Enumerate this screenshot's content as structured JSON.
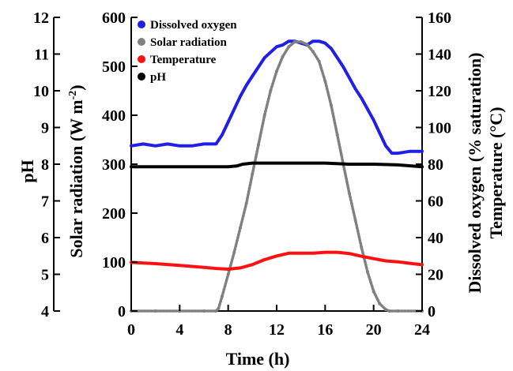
{
  "chart_data": {
    "type": "line",
    "colors": {
      "dissolved_oxygen": "#1f1fe6",
      "solar_radiation": "#808080",
      "temperature": "#ff1010",
      "ph": "#000000"
    },
    "xlabel": "Time (h)",
    "xlim": [
      0,
      24
    ],
    "x_ticks": [
      "0",
      "4",
      "8",
      "12",
      "16",
      "20",
      "24"
    ],
    "axes": {
      "ph": {
        "label": "pH",
        "lim": [
          4,
          12
        ],
        "ticks": [
          "4",
          "5",
          "6",
          "7",
          "8",
          "9",
          "10",
          "11",
          "12"
        ]
      },
      "solar": {
        "label_main": "Solar radiation (W m",
        "label_sup": "-2",
        "label_end": ")",
        "lim": [
          0,
          600
        ],
        "ticks": [
          "0",
          "100",
          "200",
          "300",
          "400",
          "500",
          "600"
        ]
      },
      "right": {
        "label_1": "Dissolved oxygen (% saturation)",
        "label_2": "Temperature (°C)",
        "lim": [
          0,
          160
        ],
        "ticks": [
          "0",
          "20",
          "40",
          "60",
          "80",
          "100",
          "120",
          "140",
          "160"
        ]
      }
    },
    "legend": {
      "position": "top-left",
      "entries": [
        {
          "label": "Dissolved oxygen",
          "series": "dissolved_oxygen"
        },
        {
          "label": "Solar radiation",
          "series": "solar_radiation"
        },
        {
          "label": "Temperature",
          "series": "temperature"
        },
        {
          "label": "pH",
          "series": "ph"
        }
      ]
    },
    "series": [
      {
        "name": "Dissolved oxygen",
        "key": "dissolved_oxygen",
        "axis": "right",
        "x": [
          0,
          1,
          2,
          3,
          4,
          5,
          6,
          7,
          7.5,
          8,
          8.5,
          9,
          9.5,
          10,
          10.5,
          11,
          11.5,
          12,
          12.5,
          13,
          13.5,
          14,
          14.5,
          15,
          15.5,
          16,
          16.5,
          17,
          17.5,
          18,
          18.5,
          19,
          19.5,
          20,
          20.5,
          21,
          21.5,
          22,
          23,
          24
        ],
        "values": [
          90,
          91,
          90,
          91,
          90,
          90,
          91,
          91,
          96,
          103,
          110,
          117,
          123,
          128,
          133,
          138,
          141,
          144,
          145,
          147,
          147,
          146,
          145,
          147,
          147,
          146,
          143,
          138,
          133,
          127,
          121,
          116,
          110,
          104,
          97,
          90,
          86,
          86,
          87,
          87
        ]
      },
      {
        "name": "Solar radiation",
        "key": "solar_radiation",
        "axis": "solar",
        "x": [
          0,
          2,
          4,
          6,
          7,
          7.2,
          7.5,
          8,
          8.5,
          9,
          9.5,
          10,
          10.5,
          11,
          11.5,
          12,
          12.5,
          13,
          13.5,
          14,
          14.5,
          15,
          15.5,
          16,
          16.5,
          17,
          17.5,
          18,
          18.5,
          19,
          19.5,
          20,
          20.5,
          21,
          21.3,
          22,
          24
        ],
        "values": [
          0,
          0,
          0,
          0,
          0,
          5,
          30,
          75,
          120,
          170,
          220,
          280,
          340,
          400,
          450,
          490,
          520,
          540,
          550,
          550,
          545,
          530,
          510,
          470,
          420,
          360,
          300,
          240,
          185,
          130,
          80,
          40,
          15,
          3,
          0,
          0,
          0
        ]
      },
      {
        "name": "Temperature",
        "key": "temperature",
        "axis": "right",
        "x": [
          0,
          2,
          4,
          6,
          7,
          8,
          9,
          10,
          11,
          12,
          13,
          14,
          15,
          16,
          17,
          18,
          19,
          20,
          21,
          22,
          23,
          24
        ],
        "values": [
          26.5,
          25.8,
          24.8,
          23.8,
          23.2,
          22.8,
          23.5,
          25.3,
          28,
          30,
          31.5,
          31.5,
          31.5,
          32,
          32,
          31.3,
          29.8,
          28.5,
          27.3,
          26.8,
          26,
          25.2
        ]
      },
      {
        "name": "pH",
        "key": "ph",
        "axis": "ph",
        "x": [
          0,
          2,
          4,
          6,
          8,
          8.7,
          9.2,
          10,
          12,
          14,
          16,
          18,
          20,
          22,
          24
        ],
        "values": [
          7.93,
          7.93,
          7.93,
          7.93,
          7.93,
          7.95,
          8.0,
          8.03,
          8.03,
          8.03,
          8.03,
          8.0,
          8.0,
          7.98,
          7.93
        ]
      }
    ]
  }
}
